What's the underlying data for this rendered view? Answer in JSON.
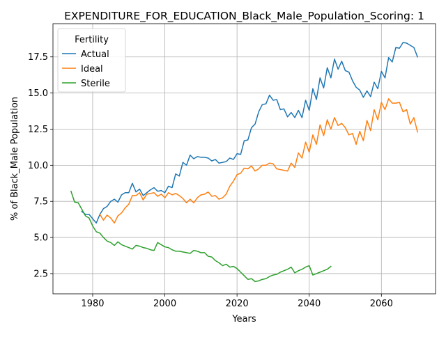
{
  "chart_data": {
    "type": "line",
    "title": "EXPENDITURE_FOR_EDUCATION_Black_Male_Population_Scoring: 1",
    "xlabel": "Years",
    "ylabel": "% of Black_Male Population",
    "xlim": [
      1969,
      2075
    ],
    "ylim": [
      1.1,
      19.8
    ],
    "xticks": [
      1980,
      2000,
      2020,
      2040,
      2060
    ],
    "yticks": [
      2.5,
      5.0,
      7.5,
      10.0,
      12.5,
      15.0,
      17.5
    ],
    "grid": true,
    "legend": {
      "title": "Fertility",
      "placement": "upper-left"
    },
    "series": [
      {
        "name": "Actual",
        "color": "#1f77b4",
        "x": [
          1977,
          1978,
          1979,
          1980,
          1981,
          1982,
          1983,
          1984,
          1985,
          1986,
          1987,
          1988,
          1989,
          1990,
          1991,
          1992,
          1993,
          1994,
          1995,
          1996,
          1997,
          1998,
          1999,
          2000,
          2001,
          2002,
          2003,
          2004,
          2005,
          2006,
          2007,
          2008,
          2009,
          2010,
          2011,
          2012,
          2013,
          2014,
          2015,
          2016,
          2017,
          2018,
          2019,
          2020,
          2021,
          2022,
          2023,
          2024,
          2025,
          2026,
          2027,
          2028,
          2029,
          2030,
          2031,
          2032,
          2033,
          2034,
          2035,
          2036,
          2037,
          2038,
          2039,
          2040,
          2041,
          2042,
          2043,
          2044,
          2045,
          2046,
          2047,
          2048,
          2049,
          2050,
          2051,
          2052,
          2053,
          2054,
          2055,
          2056,
          2057,
          2058,
          2059,
          2060,
          2061,
          2062,
          2063,
          2064,
          2065,
          2066,
          2067,
          2068,
          2069,
          2070
        ],
        "y": [
          6.8,
          6.6,
          6.6,
          6.3,
          6.0,
          6.6,
          7.0,
          7.15,
          7.5,
          7.65,
          7.45,
          7.95,
          8.1,
          8.1,
          8.75,
          8.15,
          8.35,
          7.9,
          8.1,
          8.3,
          8.45,
          8.2,
          8.25,
          8.1,
          8.55,
          8.45,
          9.4,
          9.25,
          10.2,
          10.0,
          10.7,
          10.45,
          10.6,
          10.55,
          10.55,
          10.5,
          10.3,
          10.4,
          10.15,
          10.2,
          10.25,
          10.5,
          10.4,
          10.8,
          10.75,
          11.7,
          11.75,
          12.6,
          12.85,
          13.7,
          14.2,
          14.25,
          14.85,
          14.5,
          14.55,
          13.85,
          13.9,
          13.35,
          13.65,
          13.3,
          13.8,
          13.3,
          14.5,
          13.8,
          15.3,
          14.55,
          16.05,
          15.35,
          16.75,
          16.05,
          17.35,
          16.65,
          17.2,
          16.55,
          16.45,
          15.85,
          15.4,
          15.2,
          14.7,
          15.15,
          14.75,
          15.75,
          15.3,
          16.5,
          16.05,
          17.45,
          17.15,
          18.15,
          18.1,
          18.5,
          18.45,
          18.3,
          18.15,
          17.5
        ]
      },
      {
        "name": "Ideal",
        "color": "#ff7f0e",
        "x": [
          1982,
          1983,
          1984,
          1985,
          1986,
          1987,
          1988,
          1989,
          1990,
          1991,
          1992,
          1993,
          1994,
          1995,
          1996,
          1997,
          1998,
          1999,
          2000,
          2001,
          2002,
          2003,
          2004,
          2005,
          2006,
          2007,
          2008,
          2009,
          2010,
          2011,
          2012,
          2013,
          2014,
          2015,
          2016,
          2017,
          2018,
          2019,
          2020,
          2021,
          2022,
          2023,
          2024,
          2025,
          2026,
          2027,
          2028,
          2029,
          2030,
          2031,
          2032,
          2033,
          2034,
          2035,
          2036,
          2037,
          2038,
          2039,
          2040,
          2041,
          2042,
          2043,
          2044,
          2045,
          2046,
          2047,
          2048,
          2049,
          2050,
          2051,
          2052,
          2053,
          2054,
          2055,
          2056,
          2057,
          2058,
          2059,
          2060,
          2061,
          2062,
          2063,
          2064,
          2065,
          2066,
          2067,
          2068,
          2069,
          2070
        ],
        "y": [
          6.6,
          6.2,
          6.55,
          6.35,
          6.0,
          6.5,
          6.7,
          7.05,
          7.3,
          7.9,
          7.9,
          8.1,
          7.6,
          8.0,
          8.05,
          8.1,
          7.85,
          8.0,
          7.75,
          8.1,
          7.95,
          8.05,
          7.9,
          7.7,
          7.4,
          7.65,
          7.4,
          7.75,
          7.95,
          8.0,
          8.15,
          7.85,
          7.9,
          7.65,
          7.75,
          8.0,
          8.55,
          8.9,
          9.35,
          9.45,
          9.8,
          9.75,
          9.95,
          9.6,
          9.75,
          10.0,
          10.0,
          10.15,
          10.1,
          9.75,
          9.7,
          9.65,
          9.6,
          10.15,
          9.85,
          10.85,
          10.5,
          11.6,
          10.9,
          12.1,
          11.45,
          12.8,
          12.05,
          13.15,
          12.5,
          13.3,
          12.75,
          12.9,
          12.6,
          12.1,
          12.2,
          11.45,
          12.35,
          11.7,
          13.1,
          12.4,
          13.85,
          13.15,
          14.35,
          13.85,
          14.6,
          14.3,
          14.3,
          14.35,
          13.7,
          13.85,
          12.85,
          13.3,
          12.3
        ]
      },
      {
        "name": "Sterile",
        "color": "#2ca02c",
        "x": [
          1974,
          1975,
          1976,
          1977,
          1978,
          1979,
          1980,
          1981,
          1982,
          1983,
          1984,
          1985,
          1986,
          1987,
          1988,
          1989,
          1990,
          1991,
          1992,
          1993,
          1994,
          1995,
          1996,
          1997,
          1998,
          1999,
          2000,
          2001,
          2002,
          2003,
          2004,
          2005,
          2006,
          2007,
          2008,
          2009,
          2010,
          2011,
          2012,
          2013,
          2014,
          2015,
          2016,
          2017,
          2018,
          2019,
          2020,
          2021,
          2022,
          2023,
          2024,
          2025,
          2026,
          2027,
          2028,
          2029,
          2030,
          2031,
          2032,
          2033,
          2034,
          2035,
          2036,
          2037,
          2038,
          2039,
          2040,
          2041,
          2042,
          2043,
          2044,
          2045,
          2046
        ],
        "y": [
          8.2,
          7.45,
          7.4,
          6.95,
          6.5,
          6.35,
          5.8,
          5.4,
          5.3,
          5.0,
          4.75,
          4.65,
          4.45,
          4.7,
          4.5,
          4.4,
          4.3,
          4.2,
          4.45,
          4.4,
          4.3,
          4.25,
          4.15,
          4.1,
          4.65,
          4.5,
          4.35,
          4.3,
          4.15,
          4.05,
          4.05,
          4.0,
          3.95,
          3.9,
          4.1,
          4.05,
          3.95,
          3.95,
          3.7,
          3.65,
          3.4,
          3.25,
          3.05,
          3.15,
          2.95,
          3.0,
          2.85,
          2.6,
          2.35,
          2.1,
          2.15,
          1.95,
          2.0,
          2.1,
          2.15,
          2.3,
          2.4,
          2.45,
          2.6,
          2.7,
          2.8,
          2.95,
          2.55,
          2.7,
          2.8,
          2.95,
          3.05,
          2.4,
          2.5,
          2.6,
          2.7,
          2.8,
          3.0
        ]
      }
    ]
  }
}
